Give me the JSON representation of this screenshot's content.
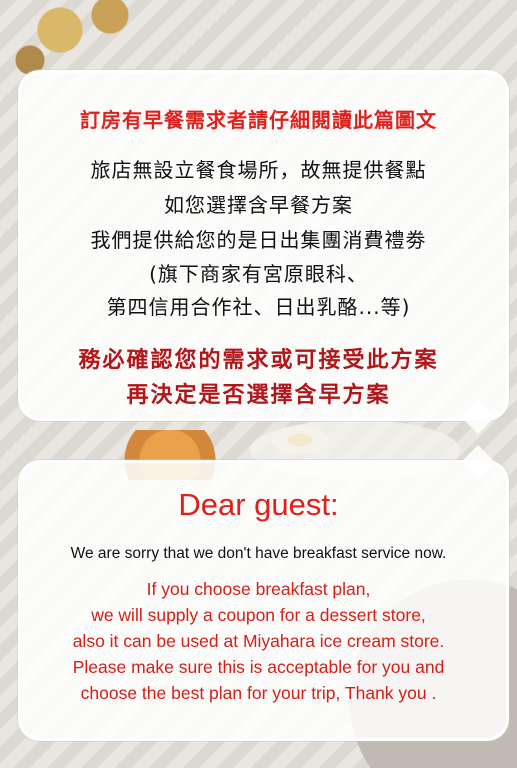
{
  "notice_zh": {
    "title": "訂房有早餐需求者請仔細閱讀此篇圖文",
    "body_lines": [
      "旅店無設立餐食場所，故無提供餐點",
      "如您選擇含早餐方案",
      "我們提供給您的是日出集團消費禮劵",
      "(旗下商家有宮原眼科、",
      "第四信用合作社、日出乳酪...等)"
    ],
    "warning_lines": [
      "務必確認您的需求或可接受此方案",
      "再決定是否選擇含早方案"
    ]
  },
  "notice_en": {
    "greeting": "Dear guest:",
    "apology": "We are sorry that we don't have breakfast service now.",
    "body_lines": [
      "If you choose breakfast plan,",
      "we will supply a coupon for a dessert store,",
      "also it can be used at Miyahara ice cream store.",
      "Please make sure this is acceptable for you and",
      "choose the best plan for your trip, Thank you ."
    ]
  },
  "colors": {
    "title_red": "#e0201c",
    "warning_darkred": "#b0161a",
    "body_black": "#111111"
  }
}
